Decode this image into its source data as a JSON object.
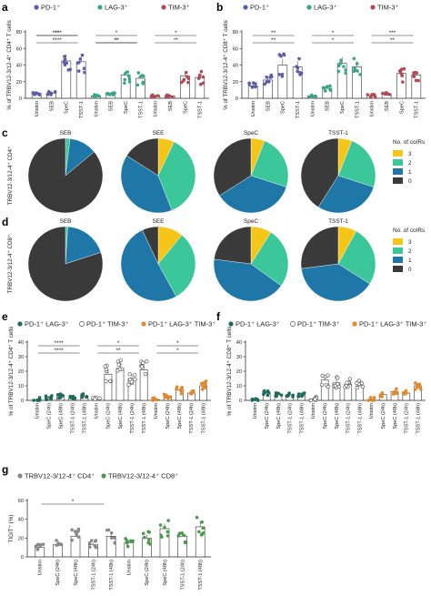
{
  "colors": {
    "pd1": "#5b5ea6",
    "lag3": "#3aa58a",
    "tim3": "#b04a55",
    "c3": "#f5c518",
    "c2": "#3cc79b",
    "c1": "#1f77a8",
    "c0": "#3a3a3a",
    "e1": "#1e6b5c",
    "e2": "#ffffff",
    "e3": "#e08a2e",
    "g1": "#888888",
    "g2": "#4a9a4a"
  },
  "panel_labels": {
    "a": "a",
    "b": "b",
    "c": "c",
    "d": "d",
    "e": "e",
    "f": "f",
    "g": "g"
  },
  "chart_data": [
    {
      "id": "a",
      "type": "bar",
      "ylabel": "% of TRBV12-3/12-4⁺ CD4⁺ T cells",
      "ylim": [
        0,
        80
      ],
      "yticks": [
        0,
        20,
        40,
        60,
        80
      ],
      "categories": [
        "Unstim",
        "SEB",
        "SpeC",
        "TSST-1"
      ],
      "series": [
        {
          "name": "PD-1⁺",
          "values": [
            6,
            6,
            45,
            44
          ]
        },
        {
          "name": "LAG-3⁺",
          "values": [
            3,
            5,
            28,
            24
          ]
        },
        {
          "name": "TIM-3⁺",
          "values": [
            3,
            3,
            27,
            25
          ]
        }
      ],
      "significance": [
        "****",
        "****",
        "**",
        "**",
        "*",
        "**",
        "*",
        "**"
      ]
    },
    {
      "id": "b",
      "type": "bar",
      "ylabel": "% of TRBV12-3/12-4⁺ CD8⁺ T cells",
      "ylim": [
        0,
        80
      ],
      "yticks": [
        0,
        20,
        40,
        60,
        80
      ],
      "categories": [
        "Unstim",
        "SEB",
        "SpeC",
        "TSST-1"
      ],
      "series": [
        {
          "name": "PD-1⁺",
          "values": [
            15,
            22,
            40,
            38
          ]
        },
        {
          "name": "LAG-3⁺",
          "values": [
            3,
            12,
            42,
            38
          ]
        },
        {
          "name": "TIM-3⁺",
          "values": [
            3,
            5,
            30,
            28
          ]
        }
      ],
      "significance": [
        "**",
        "**",
        "*",
        "*",
        "***",
        "**"
      ]
    },
    {
      "id": "c",
      "type": "pie",
      "row_label": "TRBV12-3/12-4⁺ CD4⁺",
      "legend_title": "No. of coIRs",
      "legend": [
        "3",
        "2",
        "1",
        "0"
      ],
      "pies": [
        {
          "title": "SEB",
          "values": [
            0,
            2,
            12,
            86
          ]
        },
        {
          "title": "SEE",
          "values": [
            7,
            37,
            40,
            16
          ]
        },
        {
          "title": "SpeC",
          "values": [
            6,
            24,
            36,
            34
          ]
        },
        {
          "title": "TSST-1",
          "values": [
            6,
            24,
            29,
            41
          ]
        }
      ]
    },
    {
      "id": "d",
      "type": "pie",
      "row_label": "TRBV12-3/12-4⁺ CD8⁺",
      "legend_title": "No. of coIRs",
      "legend": [
        "3",
        "2",
        "1",
        "0"
      ],
      "pies": [
        {
          "title": "SEB",
          "values": [
            0,
            1,
            19,
            80
          ]
        },
        {
          "title": "SEE",
          "values": [
            11,
            31,
            51,
            7
          ]
        },
        {
          "title": "SpeC",
          "values": [
            9,
            26,
            42,
            23
          ]
        },
        {
          "title": "TSST-1",
          "values": [
            8,
            26,
            39,
            27
          ]
        }
      ]
    },
    {
      "id": "e",
      "type": "bar",
      "ylabel": "% of TRBV12-3/12-4⁺ CD4⁺ T cells",
      "ylim": [
        0,
        40
      ],
      "yticks": [
        0,
        10,
        20,
        30,
        40
      ],
      "categories": [
        "Unstim",
        "SpeC (24h)",
        "SpeC (48h)",
        "TSST-1 (24h)",
        "TSST-1 (48h)"
      ],
      "series": [
        {
          "name": "PD-1⁺ LAG-3⁺",
          "values": [
            0.5,
            2,
            3,
            2,
            3
          ]
        },
        {
          "name": "PD-1⁺ TIM-3⁺",
          "values": [
            1,
            18,
            22,
            15,
            21
          ]
        },
        {
          "name": "PD-1⁺ LAG-3⁺ TIM-3⁺",
          "values": [
            0.5,
            3,
            7,
            5,
            10
          ]
        }
      ],
      "significance": [
        "****",
        "****",
        "*",
        "**",
        "*",
        "*"
      ]
    },
    {
      "id": "f",
      "type": "bar",
      "ylabel": "% of TRBV12-3/12-4⁺ CD8⁺ T cells",
      "ylim": [
        0,
        40
      ],
      "yticks": [
        0,
        10,
        20,
        30,
        40
      ],
      "categories": [
        "Unstim",
        "SpeC (24h)",
        "SpeC (48h)",
        "TSST-1 (24h)",
        "TSST-1 (48h)"
      ],
      "series": [
        {
          "name": "PD-1⁺ LAG-3⁺",
          "values": [
            0.5,
            5,
            4,
            4,
            4
          ]
        },
        {
          "name": "PD-1⁺ TIM-3⁺",
          "values": [
            1,
            14,
            12,
            11,
            10
          ]
        },
        {
          "name": "PD-1⁺ LAG-3⁺ TIM-3⁺",
          "values": [
            0.5,
            4,
            6,
            5,
            10
          ]
        }
      ]
    },
    {
      "id": "g",
      "type": "bar",
      "ylabel": "TIGIT⁺ (%)",
      "ylim": [
        0,
        60
      ],
      "yticks": [
        0,
        20,
        40,
        60
      ],
      "categories": [
        "Unstim",
        "SpeC (24h)",
        "SpeC (48h)",
        "TSST-1 (24h)",
        "TSST-1 (48h)"
      ],
      "series": [
        {
          "name": "TRBV12-3/12-4⁺ CD4⁺",
          "values": [
            10,
            13,
            22,
            13,
            22
          ]
        },
        {
          "name": "TRBV12-3/12-4⁺ CD8⁺",
          "values": [
            15,
            20,
            30,
            22,
            32
          ]
        }
      ],
      "significance": [
        "*"
      ]
    }
  ]
}
